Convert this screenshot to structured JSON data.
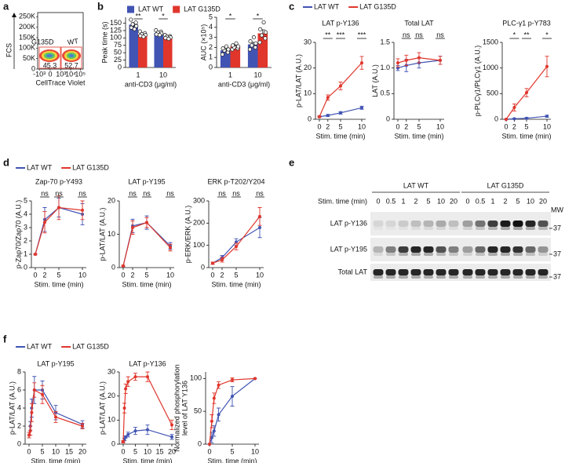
{
  "panel_labels": [
    "a",
    "b",
    "c",
    "d",
    "e",
    "f"
  ],
  "chart_data": [
    {
      "type": "flow",
      "xlabel": "CellTrace Violet",
      "ylabel": "FCS",
      "xscale": "biexponential",
      "xlim": [
        -1500,
        200000
      ],
      "ylim": [
        0,
        270000
      ],
      "xticks": [
        {
          "value": -1000,
          "label": "-10³"
        },
        0,
        {
          "value": 1000,
          "label": "10³"
        },
        {
          "value": 10000,
          "label": "10⁴"
        },
        {
          "value": 100000,
          "label": "10⁵"
        }
      ],
      "yticks": [
        0,
        {
          "value": 50000,
          "label": "50K"
        },
        {
          "value": 100000,
          "label": "100K"
        },
        {
          "value": 150000,
          "label": "150K"
        },
        {
          "value": 200000,
          "label": "200K"
        },
        {
          "value": 250000,
          "label": "250K"
        }
      ],
      "gates": [
        {
          "name": "G135D",
          "value": 45.3
        },
        {
          "name": "WT",
          "value": 52.7
        }
      ]
    },
    {
      "type": "bar",
      "ylabel": "Peak time (s)",
      "xlabel": "anti-CD3 (μg/ml)",
      "categories": [
        "1",
        "10"
      ],
      "ylim": [
        0,
        170
      ],
      "yticks": [
        0,
        25,
        50,
        75,
        100,
        125,
        150
      ],
      "series": [
        {
          "name": "LAT WT",
          "color": "#4154b3",
          "values": [
            145,
            117
          ],
          "errors": [
            7,
            4
          ],
          "points": [
            [
              162,
              152,
              146,
              140,
              135,
              130
            ],
            [
              126,
              121,
              118,
              115,
              112,
              110
            ]
          ]
        },
        {
          "name": "LAT G135D",
          "color": "#e0362c",
          "values": [
            112,
            103
          ],
          "errors": [
            3,
            2
          ],
          "points": [
            [
              122,
              116,
              113,
              110,
              107,
              104
            ],
            [
              110,
              106,
              104,
              102,
              100,
              97
            ]
          ]
        }
      ],
      "significance": [
        "**",
        "*"
      ]
    },
    {
      "type": "bar",
      "ylabel": "AUC (×10⁵)",
      "xlabel": "anti-CD3 (μg/ml)",
      "categories": [
        "1",
        "10"
      ],
      "ylim": [
        0,
        5
      ],
      "yticks": [
        0,
        1,
        2,
        3,
        4,
        5
      ],
      "series": [
        {
          "color": "#4154b3",
          "values": [
            1.7,
            2.3
          ],
          "errors": [
            0.15,
            0.2
          ],
          "points": [
            [
              1.3,
              1.5,
              1.7,
              1.8,
              1.9,
              2.1
            ],
            [
              1.8,
              2.0,
              2.2,
              2.4,
              2.6,
              3.0
            ]
          ]
        },
        {
          "color": "#e0362c",
          "values": [
            2.1,
            3.4
          ],
          "errors": [
            0.12,
            0.35
          ],
          "points": [
            [
              1.8,
              1.9,
              2.0,
              2.1,
              2.2,
              2.4
            ],
            [
              2.5,
              2.9,
              3.2,
              3.5,
              3.8,
              4.5
            ]
          ]
        }
      ],
      "significance": [
        "*",
        "*"
      ]
    },
    {
      "type": "line",
      "title": "LAT p-Y136",
      "ylabel": "p-LAT/LAT (A.U.)",
      "xlabel": "Stim. time (min)",
      "x": [
        0,
        2,
        5,
        10
      ],
      "xlim": [
        0,
        10
      ],
      "xticks": [
        0,
        2,
        5,
        10
      ],
      "ylim": [
        0,
        30
      ],
      "yticks": [
        0,
        10,
        20,
        30
      ],
      "series": [
        {
          "name": "LAT WT",
          "color": "#4154b3",
          "values": [
            1,
            1.5,
            2.5,
            4.5
          ],
          "errors": [
            0.3,
            0.4,
            0.5,
            0.6
          ]
        },
        {
          "name": "LAT G135D",
          "color": "#e0362c",
          "values": [
            1,
            8.5,
            13,
            22
          ],
          "errors": [
            0.3,
            1,
            1.5,
            2.5
          ]
        }
      ],
      "significance": [
        "**",
        "***",
        "***"
      ]
    },
    {
      "type": "line",
      "title": "Total LAT",
      "ylabel": "LAT (A.U.)",
      "xlabel": "Stim. time (min)",
      "x": [
        0,
        2,
        5,
        10
      ],
      "xlim": [
        0,
        10
      ],
      "xticks": [
        0,
        2,
        5,
        10
      ],
      "ylim": [
        0,
        1.5
      ],
      "yticks": [
        0,
        0.5,
        {
          "value": 1,
          "label": "1.0"
        },
        1.5
      ],
      "series": [
        {
          "color": "#4154b3",
          "values": [
            1,
            1.05,
            1.1,
            1.15
          ],
          "errors": [
            0.05,
            0.12,
            0.1,
            0.08
          ]
        },
        {
          "color": "#e0362c",
          "values": [
            1.1,
            1.15,
            1.2,
            1.15
          ],
          "errors": [
            0.08,
            0.1,
            0.1,
            0.08
          ]
        }
      ],
      "significance": [
        "ns",
        "ns",
        "ns"
      ]
    },
    {
      "type": "line",
      "title": "PLC-γ1 p-Y783",
      "ylabel": "p-PLCγ1/PLCγ1 (A.U.)",
      "xlabel": "Stim. time (min)",
      "x": [
        0,
        2,
        5,
        10
      ],
      "xlim": [
        0,
        10
      ],
      "xticks": [
        0,
        2,
        5,
        10
      ],
      "ylim": [
        0,
        1500
      ],
      "yticks": [
        0,
        500,
        1000,
        1500
      ],
      "series": [
        {
          "color": "#4154b3",
          "values": [
            0,
            10,
            20,
            60
          ],
          "errors": [
            5,
            10,
            15,
            20
          ]
        },
        {
          "color": "#e0362c",
          "values": [
            0,
            230,
            520,
            1030
          ],
          "errors": [
            5,
            70,
            80,
            200
          ]
        }
      ],
      "significance": [
        "*",
        "**",
        "*"
      ]
    },
    {
      "type": "line",
      "title": "Zap-70 p-Y493",
      "ylabel": "p-Zap70/Zap70 (A.U.)",
      "xlabel": "Stim. time (min)",
      "x": [
        0,
        2,
        5,
        10
      ],
      "xlim": [
        0,
        10
      ],
      "xticks": [
        0,
        2,
        5,
        10
      ],
      "ylim": [
        0,
        5
      ],
      "yticks": [
        0,
        1,
        2,
        3,
        4,
        5
      ],
      "series": [
        {
          "name": "LAT WT",
          "color": "#4154b3",
          "values": [
            1,
            3.6,
            4.5,
            4.0
          ],
          "errors": [
            0.05,
            0.9,
            0.7,
            0.8
          ]
        },
        {
          "name": "LAT G135D",
          "color": "#e0362c",
          "values": [
            1,
            3.4,
            4.5,
            4.3
          ],
          "errors": [
            0.05,
            0.8,
            0.9,
            0.7
          ]
        }
      ],
      "significance": [
        "ns",
        "ns",
        "ns"
      ]
    },
    {
      "type": "line",
      "title": "LAT p-Y195",
      "ylabel": "p-LAT/LAT (A.U.)",
      "xlabel": "Stim. time (min)",
      "x": [
        0,
        2,
        5,
        10
      ],
      "xlim": [
        0,
        10
      ],
      "xticks": [
        0,
        2,
        5,
        10
      ],
      "ylim": [
        0,
        20
      ],
      "yticks": [
        0,
        10,
        20
      ],
      "series": [
        {
          "color": "#4154b3",
          "values": [
            0.5,
            12.5,
            13.5,
            6.5
          ],
          "errors": [
            0.2,
            2,
            2,
            1
          ]
        },
        {
          "color": "#e0362c",
          "values": [
            0.5,
            12,
            13.5,
            6
          ],
          "errors": [
            0.2,
            2,
            1.5,
            1
          ]
        }
      ],
      "significance": [
        "ns",
        "ns",
        "ns"
      ]
    },
    {
      "type": "line",
      "title": "ERK p-T202/Y204",
      "ylabel": "p-ERK/ERK (A.U.)",
      "xlabel": "Stim. time (min)",
      "x": [
        0,
        2,
        5,
        10
      ],
      "xlim": [
        0,
        10
      ],
      "xticks": [
        0,
        2,
        5,
        10
      ],
      "ylim": [
        0,
        300
      ],
      "yticks": [
        0,
        100,
        200,
        300
      ],
      "series": [
        {
          "color": "#4154b3",
          "values": [
            20,
            45,
            115,
            180
          ],
          "errors": [
            5,
            10,
            15,
            45
          ]
        },
        {
          "color": "#e0362c",
          "values": [
            20,
            35,
            95,
            230
          ],
          "errors": [
            5,
            10,
            15,
            40
          ]
        }
      ],
      "significance": [
        "ns",
        "ns",
        "ns"
      ]
    },
    {
      "type": "line",
      "title": "LAT p-Y195",
      "ylabel": "p-LAT/LAT (A.U.)",
      "xlabel": "Stim. time (min)",
      "x": [
        0,
        0.5,
        1,
        2,
        5,
        10,
        20
      ],
      "xlim": [
        0,
        20
      ],
      "xticks": [
        0,
        5,
        10,
        15,
        20
      ],
      "ylim": [
        0,
        8
      ],
      "yticks": [
        0,
        2,
        4,
        6,
        8
      ],
      "series": [
        {
          "name": "LAT WT",
          "color": "#4154b3",
          "values": [
            1,
            2,
            4,
            6,
            6,
            3.5,
            2.2
          ],
          "errors": [
            0.3,
            0.5,
            1,
            1.5,
            1,
            0.8,
            0.4
          ]
        },
        {
          "name": "LAT G135D",
          "color": "#e0362c",
          "values": [
            1,
            1.5,
            3.5,
            6,
            5.5,
            3,
            2
          ],
          "errors": [
            0.3,
            0.5,
            1,
            0.8,
            1,
            0.6,
            0.3
          ]
        }
      ]
    },
    {
      "type": "line",
      "title": "LAT p-Y136",
      "ylabel": "p-LAT/LAT (A.U.)",
      "xlabel": "Stim. time (min)",
      "x": [
        0,
        0.5,
        1,
        2,
        5,
        10,
        20
      ],
      "xlim": [
        0,
        20
      ],
      "xticks": [
        0,
        5,
        10,
        15,
        20
      ],
      "ylim": [
        0,
        30
      ],
      "yticks": [
        0,
        10,
        20,
        30
      ],
      "series": [
        {
          "color": "#4154b3",
          "values": [
            1,
            2,
            3,
            4,
            5.5,
            6,
            3
          ],
          "errors": [
            0.3,
            0.5,
            0.5,
            1,
            1.5,
            2,
            1
          ]
        },
        {
          "color": "#e0362c",
          "values": [
            1,
            15,
            23,
            26,
            28,
            28,
            8
          ],
          "errors": [
            0.5,
            2,
            2,
            2,
            1.5,
            2,
            2
          ]
        }
      ]
    },
    {
      "type": "line",
      "ylabel": [
        "Normalized phosphorylation",
        "level of LAT Y136"
      ],
      "xlabel": "Stim. time (min)",
      "x": [
        0,
        0.5,
        1,
        2,
        5,
        10
      ],
      "xlim": [
        0,
        10
      ],
      "xticks": [
        0,
        5,
        10
      ],
      "ylim": [
        0,
        110
      ],
      "yticks": [
        0,
        50,
        100
      ],
      "series": [
        {
          "color": "#4154b3",
          "values": [
            0,
            10,
            20,
            45,
            73,
            100
          ],
          "errors": [
            0,
            8,
            8,
            10,
            15,
            0
          ]
        },
        {
          "color": "#e0362c",
          "values": [
            0,
            35,
            70,
            90,
            98,
            100
          ],
          "errors": [
            0,
            10,
            8,
            5,
            3,
            0
          ]
        }
      ]
    }
  ],
  "blot": {
    "groups": [
      "LAT WT",
      "LAT G135D"
    ],
    "time_label": "Stim. time (min)",
    "times": [
      "0",
      "0.5",
      "1",
      "2",
      "5",
      "10",
      "20"
    ],
    "mw_label": "MW",
    "rows": [
      {
        "label": "LAT p-Y136",
        "mw": "37"
      },
      {
        "label": "LAT p-Y195",
        "mw": "37"
      },
      {
        "label": "Total LAT",
        "mw": "37"
      }
    ]
  }
}
